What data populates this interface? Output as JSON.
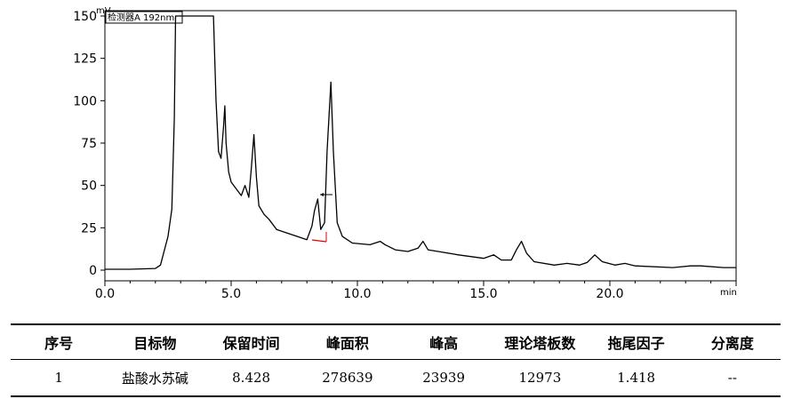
{
  "chart_data": {
    "type": "line",
    "xlabel": "min",
    "ylabel": "mV",
    "xlim": [
      0,
      25.0
    ],
    "ylim": [
      -5,
      150
    ],
    "xticks": [
      "0.0",
      "5.0",
      "10.0",
      "15.0",
      "20.0"
    ],
    "yticks": [
      "0",
      "25",
      "50",
      "75",
      "100",
      "125",
      "150"
    ],
    "grid": false,
    "legend": {
      "position": "top-left",
      "entry": "检测器A 192nm"
    },
    "series": [
      {
        "name": "检测器A 192nm",
        "x": [
          0.0,
          1.0,
          2.0,
          2.2,
          2.5,
          2.65,
          2.75,
          2.8,
          2.85,
          2.9,
          3.0,
          3.5,
          4.0,
          4.3,
          4.4,
          4.5,
          4.6,
          4.7,
          4.75,
          4.8,
          4.9,
          5.0,
          5.2,
          5.4,
          5.55,
          5.7,
          5.8,
          5.9,
          6.0,
          6.1,
          6.3,
          6.5,
          6.8,
          7.2,
          7.6,
          8.0,
          8.2,
          8.3,
          8.428,
          8.55,
          8.7,
          8.8,
          8.95,
          9.05,
          9.2,
          9.4,
          9.8,
          10.5,
          10.9,
          11.1,
          11.5,
          12.0,
          12.4,
          12.6,
          12.8,
          13.2,
          14.0,
          15.0,
          15.4,
          15.7,
          16.1,
          16.3,
          16.5,
          16.7,
          17.0,
          17.8,
          18.3,
          18.8,
          19.1,
          19.4,
          19.7,
          20.2,
          20.6,
          21.0,
          22.5,
          23.2,
          23.6,
          24.5,
          25.0
        ],
        "y": [
          0.5,
          0.5,
          1.0,
          3.0,
          20.0,
          36.0,
          90.0,
          150.0,
          150.0,
          150.0,
          150.0,
          150.0,
          150.0,
          150.0,
          100.0,
          70.0,
          66.0,
          85.0,
          97.0,
          75.0,
          58.0,
          52.0,
          48.0,
          44.0,
          50.0,
          43.0,
          60.0,
          80.0,
          55.0,
          38.0,
          33.0,
          30.0,
          24.0,
          22.0,
          20.0,
          18.0,
          26.0,
          35.0,
          42.0,
          24.0,
          28.0,
          70.0,
          111.0,
          70.0,
          28.0,
          20.0,
          16.0,
          15.0,
          17.0,
          15.0,
          12.0,
          11.0,
          13.0,
          17.0,
          12.0,
          11.0,
          9.0,
          7.0,
          9.0,
          6.0,
          6.0,
          12.0,
          17.0,
          10.0,
          5.0,
          3.0,
          4.0,
          3.0,
          4.5,
          9.0,
          5.0,
          3.0,
          4.0,
          2.5,
          1.5,
          2.5,
          2.5,
          1.5,
          1.5
        ]
      }
    ]
  },
  "table": {
    "headers": [
      "序号",
      "目标物",
      "保留时间",
      "峰面积",
      "峰高",
      "理论塔板数",
      "拖尾因子",
      "分离度"
    ],
    "rows": [
      [
        "1",
        "盐酸水苏碱",
        "8.428",
        "278639",
        "23939",
        "12973",
        "1.418",
        "--"
      ]
    ]
  },
  "colors": {
    "trace": "#000000",
    "baseline": "#e00000",
    "axis": "#000000"
  }
}
